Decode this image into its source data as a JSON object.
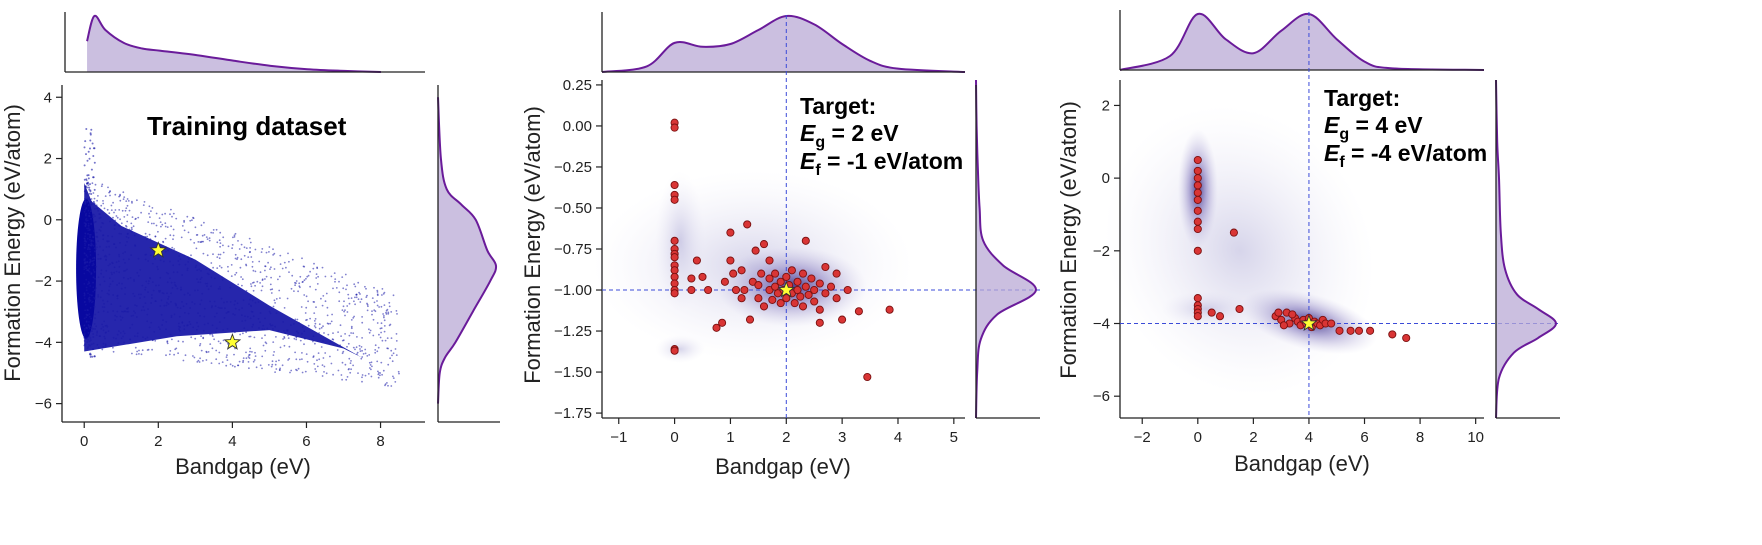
{
  "figure": {
    "colors": {
      "density_stroke": "#6a1b9a",
      "density_fill": "#b9a9d6",
      "scatter_blue": "#1a1aa8",
      "point_red": "#d93535",
      "point_edge": "#7a1010",
      "star_fill": "#ffff33",
      "guide_line": "#3b4bd8",
      "kde_shade": "#4a3f9a"
    }
  },
  "chart_data": [
    {
      "id": "panel-a",
      "type": "scatter",
      "title": "Training dataset",
      "xlabel": "Bandgap (eV)",
      "ylabel": "Formation Energy (eV/atom)",
      "xlim": [
        -0.6,
        9.2
      ],
      "ylim": [
        -6.6,
        4.4
      ],
      "xticks": [
        0,
        2,
        4,
        6,
        8
      ],
      "yticks": [
        -6,
        -4,
        -2,
        0,
        2,
        4
      ],
      "xtick_labels": [
        "0",
        "2",
        "4",
        "6",
        "8"
      ],
      "ytick_labels": [
        "−6",
        "−4",
        "−2",
        "0",
        "2",
        "4"
      ],
      "targets": [
        {
          "x": 2,
          "y": -1
        },
        {
          "x": 4,
          "y": -4
        }
      ],
      "marginal_x": {
        "x": [
          0,
          0.2,
          0.5,
          1,
          1.5,
          2,
          3,
          4,
          5,
          6,
          7,
          8
        ],
        "density": [
          0.55,
          1.0,
          0.75,
          0.52,
          0.42,
          0.38,
          0.3,
          0.2,
          0.11,
          0.05,
          0.02,
          0.0
        ]
      },
      "marginal_y": {
        "y": [
          -6,
          -5,
          -4.5,
          -4,
          -3,
          -2,
          -1.5,
          -1,
          0,
          0.5,
          1,
          2,
          4
        ],
        "density": [
          0.0,
          0.03,
          0.12,
          0.3,
          0.6,
          0.9,
          1.0,
          0.85,
          0.65,
          0.4,
          0.15,
          0.05,
          0.0
        ]
      }
    },
    {
      "id": "panel-b",
      "type": "scatter",
      "xlabel": "Bandgap (eV)",
      "ylabel": "Formation Energy (eV/atom)",
      "xlim": [
        -1.3,
        5.2
      ],
      "ylim": [
        -1.78,
        0.28
      ],
      "xticks": [
        -1,
        0,
        1,
        2,
        3,
        4,
        5
      ],
      "yticks": [
        -1.75,
        -1.5,
        -1.25,
        -1.0,
        -0.75,
        -0.5,
        -0.25,
        0.0,
        0.25
      ],
      "xtick_labels": [
        "−1",
        "0",
        "1",
        "2",
        "3",
        "4",
        "5"
      ],
      "ytick_labels": [
        "−1.75",
        "−1.50",
        "−1.25",
        "−1.00",
        "−0.75",
        "−0.50",
        "−0.25",
        "0.00",
        "0.25"
      ],
      "annotation": {
        "line1": "Target:",
        "eg_symbol": "E",
        "eg_sub": "g",
        "eg_value": " = 2 eV",
        "ef_symbol": "E",
        "ef_sub": "f",
        "ef_value": " = -1 eV/atom"
      },
      "target": {
        "x": 2,
        "y": -1
      },
      "points": [
        [
          0,
          0.02
        ],
        [
          0,
          -0.01
        ],
        [
          0,
          -0.36
        ],
        [
          0,
          -0.42
        ],
        [
          0,
          -0.45
        ],
        [
          0,
          -0.7
        ],
        [
          0,
          -0.75
        ],
        [
          0,
          -0.78
        ],
        [
          0,
          -0.8
        ],
        [
          0,
          -0.85
        ],
        [
          0,
          -0.88
        ],
        [
          0,
          -0.92
        ],
        [
          0,
          -0.96
        ],
        [
          0,
          -1.0
        ],
        [
          0,
          -1.02
        ],
        [
          0,
          -1.36
        ],
        [
          0,
          -1.37
        ],
        [
          0.3,
          -0.93
        ],
        [
          0.3,
          -1.0
        ],
        [
          0.4,
          -0.82
        ],
        [
          0.5,
          -0.92
        ],
        [
          0.6,
          -1.0
        ],
        [
          0.75,
          -1.23
        ],
        [
          0.85,
          -1.2
        ],
        [
          0.9,
          -0.95
        ],
        [
          1.0,
          -0.82
        ],
        [
          1.0,
          -0.65
        ],
        [
          1.05,
          -0.9
        ],
        [
          1.1,
          -1.0
        ],
        [
          1.2,
          -1.05
        ],
        [
          1.2,
          -0.88
        ],
        [
          1.3,
          -0.6
        ],
        [
          1.35,
          -1.18
        ],
        [
          1.4,
          -0.95
        ],
        [
          1.5,
          -0.97
        ],
        [
          1.5,
          -1.05
        ],
        [
          1.55,
          -0.9
        ],
        [
          1.6,
          -0.72
        ],
        [
          1.6,
          -1.1
        ],
        [
          1.7,
          -0.93
        ],
        [
          1.7,
          -1.0
        ],
        [
          1.75,
          -1.06
        ],
        [
          1.8,
          -0.98
        ],
        [
          1.8,
          -0.9
        ],
        [
          1.85,
          -1.02
        ],
        [
          1.9,
          -0.95
        ],
        [
          1.9,
          -1.08
        ],
        [
          1.95,
          -1.0
        ],
        [
          2.0,
          -0.92
        ],
        [
          2.0,
          -1.05
        ],
        [
          2.05,
          -0.97
        ],
        [
          2.1,
          -1.02
        ],
        [
          2.1,
          -0.88
        ],
        [
          2.15,
          -1.08
        ],
        [
          2.2,
          -0.95
        ],
        [
          2.2,
          -1.0
        ],
        [
          2.25,
          -1.04
        ],
        [
          2.3,
          -0.9
        ],
        [
          2.3,
          -1.1
        ],
        [
          2.35,
          -0.98
        ],
        [
          2.4,
          -1.03
        ],
        [
          2.45,
          -0.93
        ],
        [
          2.5,
          -1.0
        ],
        [
          2.5,
          -1.07
        ],
        [
          2.6,
          -0.96
        ],
        [
          2.6,
          -1.12
        ],
        [
          2.7,
          -1.02
        ],
        [
          2.7,
          -0.86
        ],
        [
          2.8,
          -0.98
        ],
        [
          2.9,
          -1.05
        ],
        [
          3.0,
          -1.18
        ],
        [
          2.35,
          -0.7
        ],
        [
          2.6,
          -1.2
        ],
        [
          1.45,
          -0.76
        ],
        [
          2.9,
          -0.9
        ],
        [
          3.1,
          -1.0
        ],
        [
          3.3,
          -1.13
        ],
        [
          3.85,
          -1.12
        ],
        [
          3.45,
          -1.53
        ],
        [
          1.7,
          -0.82
        ],
        [
          1.25,
          -1.0
        ]
      ],
      "marginal_x": {
        "x": [
          -1.3,
          -0.5,
          0,
          0.5,
          1,
          1.5,
          2,
          2.5,
          3,
          3.5,
          4,
          5.2
        ],
        "density": [
          0.0,
          0.1,
          0.52,
          0.45,
          0.5,
          0.75,
          1.0,
          0.85,
          0.5,
          0.2,
          0.06,
          0.0
        ]
      },
      "marginal_y": {
        "y": [
          -1.78,
          -1.5,
          -1.3,
          -1.15,
          -1.0,
          -0.85,
          -0.7,
          -0.5,
          -0.25,
          0,
          0.28
        ],
        "density": [
          0.0,
          0.02,
          0.08,
          0.35,
          1.0,
          0.45,
          0.12,
          0.06,
          0.03,
          0.01,
          0.0
        ]
      }
    },
    {
      "id": "panel-c",
      "type": "scatter",
      "xlabel": "Bandgap (eV)",
      "ylabel": "Formation Energy (eV/atom)",
      "xlim": [
        -2.8,
        10.3
      ],
      "ylim": [
        -6.6,
        2.7
      ],
      "xticks": [
        -2,
        0,
        2,
        4,
        6,
        8,
        10
      ],
      "yticks": [
        -6,
        -4,
        -2,
        0,
        2
      ],
      "xtick_labels": [
        "−2",
        "0",
        "2",
        "4",
        "6",
        "8",
        "10"
      ],
      "ytick_labels": [
        "−6",
        "−4",
        "−2",
        "0",
        "2"
      ],
      "annotation": {
        "line1": "Target:",
        "eg_symbol": "E",
        "eg_sub": "g",
        "eg_value": " = 4 eV",
        "ef_symbol": "E",
        "ef_sub": "f",
        "ef_value": " = -4 eV/atom"
      },
      "target": {
        "x": 4,
        "y": -4
      },
      "points": [
        [
          0,
          0.5
        ],
        [
          0,
          0.2
        ],
        [
          0,
          0.0
        ],
        [
          0,
          -0.2
        ],
        [
          0,
          -0.4
        ],
        [
          0,
          -0.6
        ],
        [
          0,
          -0.9
        ],
        [
          0,
          -1.2
        ],
        [
          0,
          -1.4
        ],
        [
          0,
          -2.0
        ],
        [
          0,
          -3.3
        ],
        [
          0,
          -3.5
        ],
        [
          0,
          -3.6
        ],
        [
          0,
          -3.7
        ],
        [
          0,
          -3.8
        ],
        [
          0.5,
          -3.7
        ],
        [
          0.8,
          -3.8
        ],
        [
          1.3,
          -1.5
        ],
        [
          1.5,
          -3.6
        ],
        [
          2.8,
          -3.8
        ],
        [
          3.0,
          -3.9
        ],
        [
          3.2,
          -3.7
        ],
        [
          3.3,
          -4.0
        ],
        [
          3.5,
          -3.85
        ],
        [
          3.6,
          -3.95
        ],
        [
          3.7,
          -4.05
        ],
        [
          3.8,
          -3.9
        ],
        [
          3.9,
          -4.0
        ],
        [
          4.0,
          -3.85
        ],
        [
          4.1,
          -4.1
        ],
        [
          4.2,
          -3.95
        ],
        [
          4.3,
          -4.0
        ],
        [
          4.4,
          -4.05
        ],
        [
          4.5,
          -3.9
        ],
        [
          4.6,
          -4.0
        ],
        [
          3.1,
          -4.05
        ],
        [
          2.9,
          -3.7
        ],
        [
          3.4,
          -3.75
        ],
        [
          4.8,
          -4.0
        ],
        [
          5.1,
          -4.2
        ],
        [
          5.5,
          -4.2
        ],
        [
          5.8,
          -4.2
        ],
        [
          6.2,
          -4.2
        ],
        [
          7.0,
          -4.3
        ],
        [
          7.5,
          -4.4
        ]
      ],
      "marginal_x": {
        "x": [
          -2.8,
          -1,
          0,
          1,
          2,
          3,
          4,
          5,
          6,
          7,
          10.3
        ],
        "density": [
          0.0,
          0.25,
          1.0,
          0.55,
          0.3,
          0.7,
          1.0,
          0.55,
          0.15,
          0.03,
          0.0
        ]
      },
      "marginal_y": {
        "y": [
          -6.6,
          -5.5,
          -4.8,
          -4.4,
          -4.0,
          -3.6,
          -3.2,
          -2.5,
          -1.5,
          0,
          1,
          2.7
        ],
        "density": [
          0.0,
          0.05,
          0.3,
          0.7,
          1.0,
          0.7,
          0.35,
          0.15,
          0.08,
          0.05,
          0.02,
          0.0
        ]
      }
    }
  ]
}
